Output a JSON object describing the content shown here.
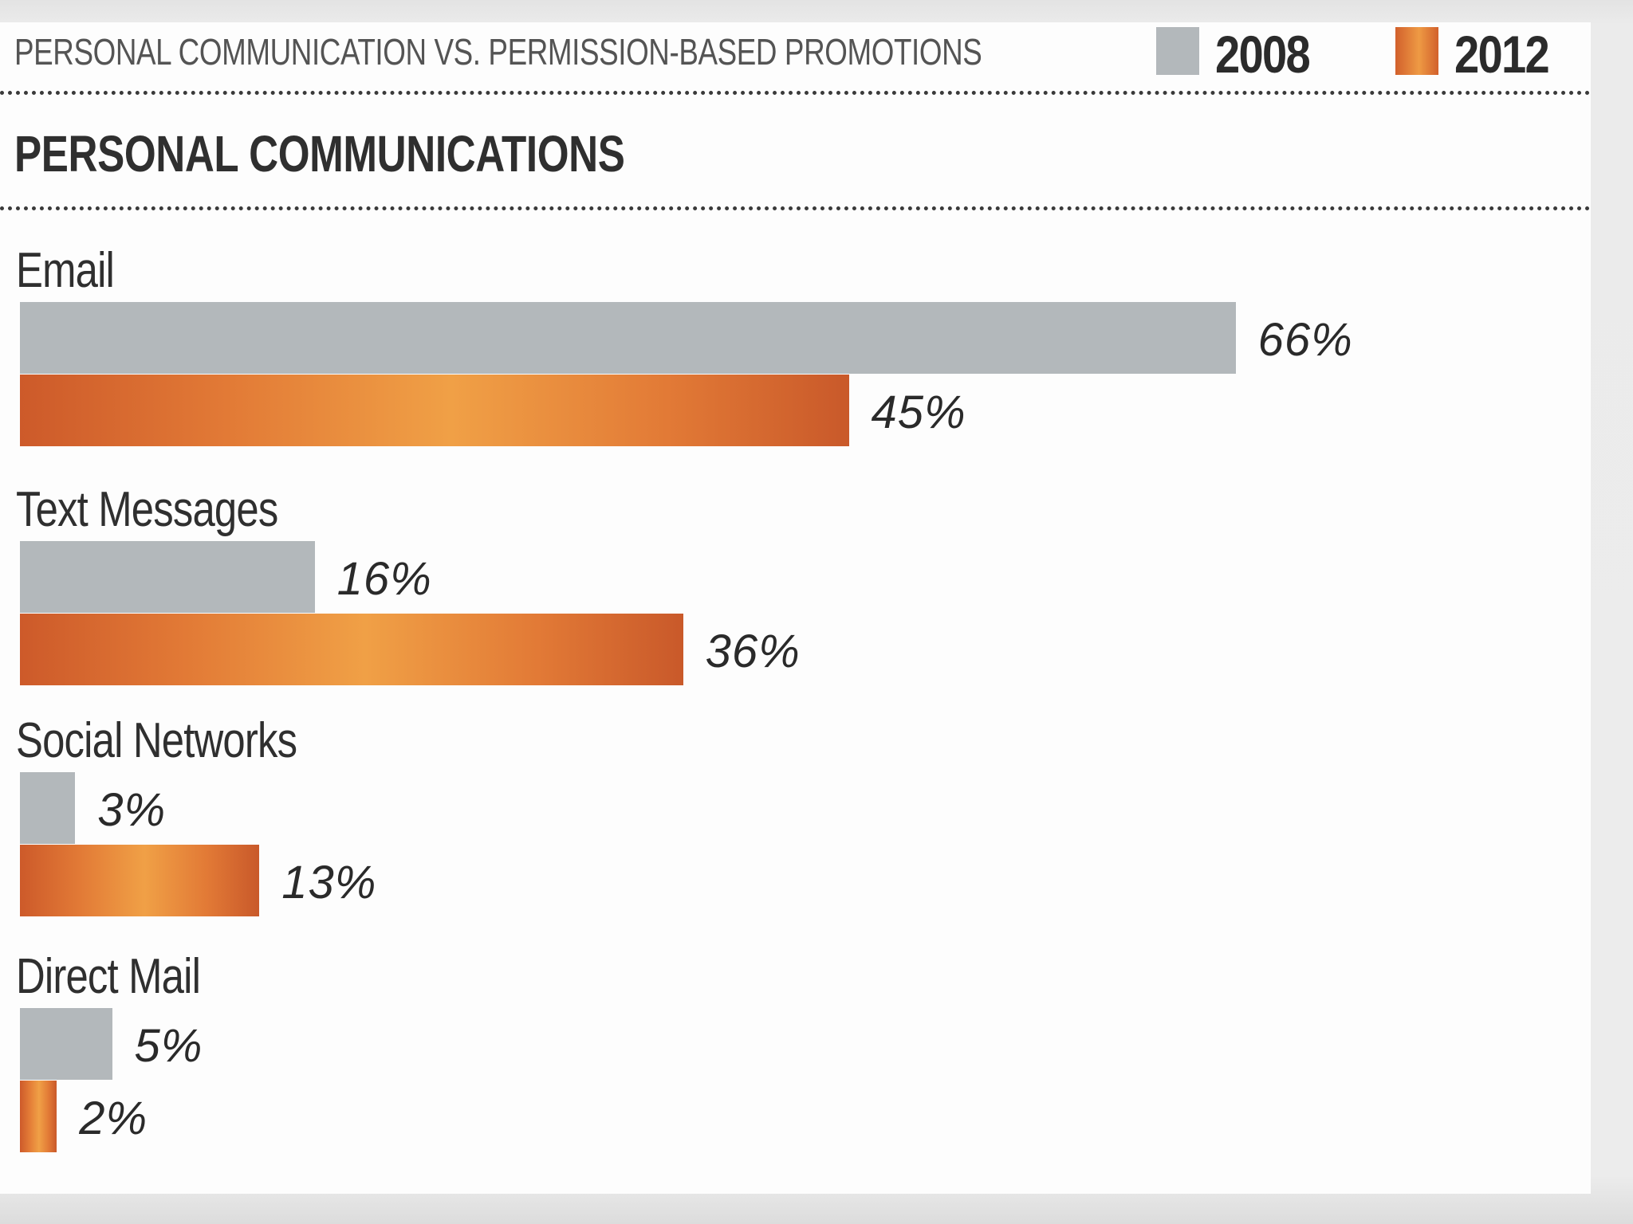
{
  "header": {
    "title": "PERSONAL COMMUNICATION VS. PERMISSION-BASED PROMOTIONS"
  },
  "section": {
    "title": "PERSONAL COMMUNICATIONS"
  },
  "colors": {
    "2008": "#b3b8bb",
    "2012": "#e37d36"
  },
  "chart_data": {
    "type": "bar",
    "orientation": "horizontal",
    "title": "PERSONAL COMMUNICATION VS. PERMISSION-BASED PROMOTIONS",
    "subtitle": "PERSONAL COMMUNICATIONS",
    "legend_position": "top-right",
    "grid": false,
    "categories": [
      "Email",
      "Text Messages",
      "Social Networks",
      "Direct Mail"
    ],
    "series": [
      {
        "name": "2008",
        "values": [
          66,
          16,
          3,
          5
        ],
        "labels": [
          "66%",
          "16%",
          "3%",
          "5%"
        ]
      },
      {
        "name": "2012",
        "values": [
          45,
          36,
          13,
          2
        ],
        "labels": [
          "45%",
          "36%",
          "13%",
          "2%"
        ]
      }
    ]
  }
}
